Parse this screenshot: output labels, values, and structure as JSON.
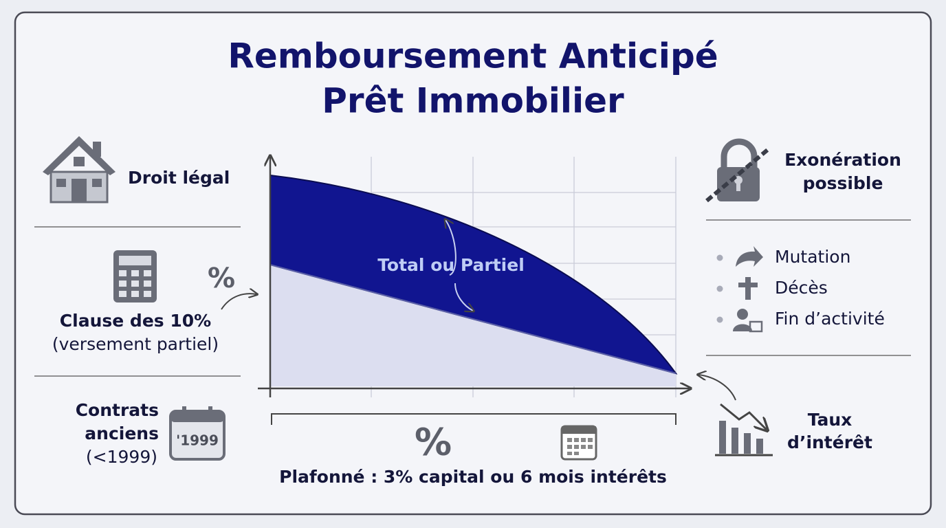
{
  "title": {
    "lines": [
      "Remboursement Anticipé",
      "Prêt Immobilier"
    ]
  },
  "left": {
    "legal": {
      "label": "Droit légal"
    },
    "clause": {
      "symbol": "%",
      "lines": [
        "Clause des 10%",
        "(versement partiel)"
      ]
    },
    "contracts": {
      "lines": [
        "Contrats",
        "anciens",
        "(<1999)"
      ],
      "icon_text": "'1999"
    }
  },
  "center": {
    "area_label": "Total ou Partiel",
    "symbol": "%",
    "caption": "Plafonné : 3% capital ou 6 mois intérêts"
  },
  "right": {
    "exemption": {
      "lines": [
        "Exonération",
        "possible"
      ]
    },
    "list": [
      "Mutation",
      "Décès",
      "Fin d’activité"
    ],
    "rate": {
      "lines": [
        "Taux",
        "d’intérêt"
      ]
    }
  }
}
